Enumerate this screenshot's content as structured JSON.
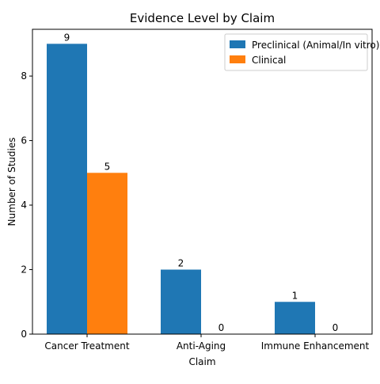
{
  "chart_data": {
    "type": "bar",
    "title": "Evidence Level by Claim",
    "xlabel": "Claim",
    "ylabel": "Number of Studies",
    "categories": [
      "Cancer Treatment",
      "Anti-Aging",
      "Immune Enhancement"
    ],
    "series": [
      {
        "name": "Preclinical (Animal/In vitro)",
        "values": [
          9,
          2,
          1
        ],
        "color": "#1f77b4"
      },
      {
        "name": "Clinical",
        "values": [
          5,
          0,
          0
        ],
        "color": "#ff7f0e"
      }
    ],
    "ylim": [
      0,
      9.45
    ],
    "yticks": [
      0,
      2,
      4,
      6,
      8
    ],
    "grid": false,
    "legend_position": "top-right"
  }
}
